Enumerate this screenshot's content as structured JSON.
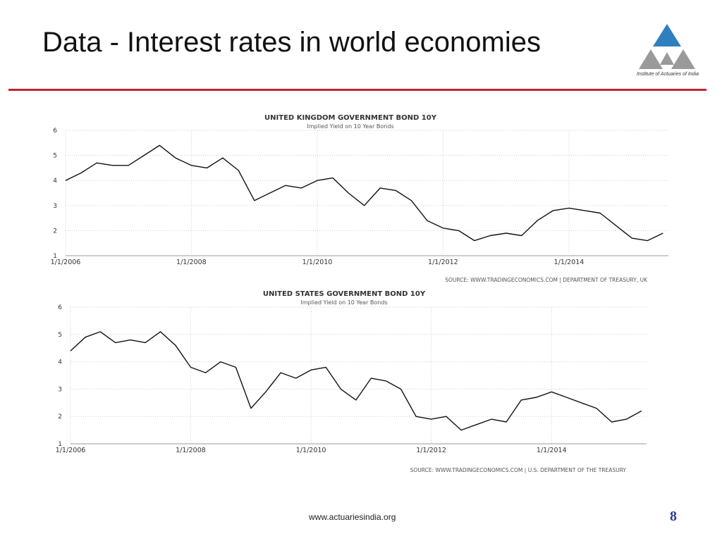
{
  "slide": {
    "title": "Data - Interest rates in world economies",
    "logo_text": "Institute of Actuaries of India",
    "footer_url": "www.actuariesindia.org",
    "page_number": "8",
    "accent_color": "#c0262d",
    "logo_color": "#2f7fbf"
  },
  "chart_data": [
    {
      "type": "line",
      "title": "UNITED KINGDOM GOVERNMENT BOND 10Y",
      "subtitle": "Implied Yield on 10 Year Bonds",
      "source": "SOURCE: WWW.TRADINGECONOMICS.COM | DEPARTMENT OF TREASURY, UK",
      "xlabel": "",
      "ylabel": "",
      "x_tick_labels": [
        "1/1/2006",
        "1/1/2008",
        "1/1/2010",
        "1/1/2012",
        "1/1/2014"
      ],
      "x_range": [
        "2006-01-01",
        "2015-08-01"
      ],
      "y_ticks": [
        1,
        2,
        3,
        4,
        5,
        6
      ],
      "ylim": [
        1,
        6
      ],
      "grid": true,
      "line_color": "#111111",
      "series": [
        {
          "x": [
            "2006-01-01",
            "2006-04-01",
            "2006-07-01",
            "2006-10-01",
            "2007-01-01",
            "2007-04-01",
            "2007-07-01",
            "2007-10-01",
            "2008-01-01",
            "2008-04-01",
            "2008-07-01",
            "2008-10-01",
            "2009-01-01",
            "2009-04-01",
            "2009-07-01",
            "2009-10-01",
            "2010-01-01",
            "2010-04-01",
            "2010-07-01",
            "2010-10-01",
            "2011-01-01",
            "2011-04-01",
            "2011-07-01",
            "2011-10-01",
            "2012-01-01",
            "2012-04-01",
            "2012-07-01",
            "2012-10-01",
            "2013-01-01",
            "2013-04-01",
            "2013-07-01",
            "2013-10-01",
            "2014-01-01",
            "2014-04-01",
            "2014-07-01",
            "2014-10-01",
            "2015-01-01",
            "2015-04-01",
            "2015-07-01"
          ],
          "values": [
            4.0,
            4.3,
            4.7,
            4.6,
            4.6,
            5.0,
            5.4,
            4.9,
            4.6,
            4.5,
            4.9,
            4.4,
            3.2,
            3.5,
            3.8,
            3.7,
            4.0,
            4.1,
            3.5,
            3.0,
            3.7,
            3.6,
            3.2,
            2.4,
            2.1,
            2.0,
            1.6,
            1.8,
            1.9,
            1.8,
            2.4,
            2.8,
            2.9,
            2.8,
            2.7,
            2.2,
            1.7,
            1.6,
            1.9
          ]
        }
      ]
    },
    {
      "type": "line",
      "title": "UNITED STATES GOVERNMENT BOND 10Y",
      "subtitle": "Implied Yield on 10 Year Bonds",
      "source": "SOURCE: WWW.TRADINGECONOMICS.COM | U.S. DEPARTMENT OF THE TREASURY",
      "xlabel": "",
      "ylabel": "",
      "x_tick_labels": [
        "1/1/2006",
        "1/1/2008",
        "1/1/2010",
        "1/1/2012",
        "1/1/2014"
      ],
      "x_range": [
        "2006-01-01",
        "2015-08-01"
      ],
      "y_ticks": [
        1,
        2,
        3,
        4,
        5,
        6
      ],
      "ylim": [
        1,
        6
      ],
      "grid": true,
      "line_color": "#111111",
      "series": [
        {
          "x": [
            "2006-01-01",
            "2006-04-01",
            "2006-07-01",
            "2006-10-01",
            "2007-01-01",
            "2007-04-01",
            "2007-07-01",
            "2007-10-01",
            "2008-01-01",
            "2008-04-01",
            "2008-07-01",
            "2008-10-01",
            "2009-01-01",
            "2009-04-01",
            "2009-07-01",
            "2009-10-01",
            "2010-01-01",
            "2010-04-01",
            "2010-07-01",
            "2010-10-01",
            "2011-01-01",
            "2011-04-01",
            "2011-07-01",
            "2011-10-01",
            "2012-01-01",
            "2012-04-01",
            "2012-07-01",
            "2012-10-01",
            "2013-01-01",
            "2013-04-01",
            "2013-07-01",
            "2013-10-01",
            "2014-01-01",
            "2014-04-01",
            "2014-07-01",
            "2014-10-01",
            "2015-01-01",
            "2015-04-01",
            "2015-07-01"
          ],
          "values": [
            4.4,
            4.9,
            5.1,
            4.7,
            4.8,
            4.7,
            5.1,
            4.6,
            3.8,
            3.6,
            4.0,
            3.8,
            2.3,
            2.9,
            3.6,
            3.4,
            3.7,
            3.8,
            3.0,
            2.6,
            3.4,
            3.3,
            3.0,
            2.0,
            1.9,
            2.0,
            1.5,
            1.7,
            1.9,
            1.8,
            2.6,
            2.7,
            2.9,
            2.7,
            2.5,
            2.3,
            1.8,
            1.9,
            2.2
          ]
        }
      ]
    }
  ]
}
